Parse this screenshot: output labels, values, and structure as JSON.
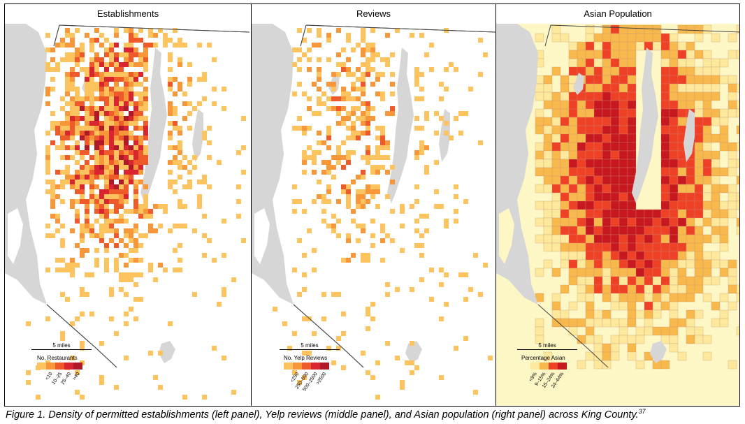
{
  "figure": {
    "caption_text": "Figure 1. Density of permitted establishments (left panel), Yelp reviews (middle panel), and Asian population (right panel) across King County.",
    "caption_ref": "37"
  },
  "colors": {
    "water": "#d6d6d6",
    "land": "#ffffff",
    "scale5": [
      "#fcc35e",
      "#f7973a",
      "#ef5a2b",
      "#d9252f",
      "#b01a28"
    ],
    "population5": [
      "#fdf7c6",
      "#fde99c",
      "#f8b94c",
      "#ef4126",
      "#c8181f"
    ]
  },
  "panels": [
    {
      "id": "establishments",
      "title": "Establishments",
      "scalebar_label": "5 miles",
      "legend_title": "No. Restaurants",
      "legend_labels": [
        "<10",
        "10–25",
        "25–40",
        ">40"
      ],
      "map_type": "grid-density"
    },
    {
      "id": "reviews",
      "title": "Reviews",
      "scalebar_label": "5 miles",
      "legend_title": "No. Yelp Reviews",
      "legend_labels": [
        "<250",
        "250–500",
        "500–2500",
        ">2500"
      ],
      "map_type": "grid-density"
    },
    {
      "id": "asian-population",
      "title": "Asian Population",
      "scalebar_label": "5 miles",
      "legend_title": "Percentage Asian",
      "legend_labels": [
        "<9%",
        "9–15%",
        "15–24%",
        "24–64%"
      ],
      "map_type": "choropleth"
    }
  ]
}
